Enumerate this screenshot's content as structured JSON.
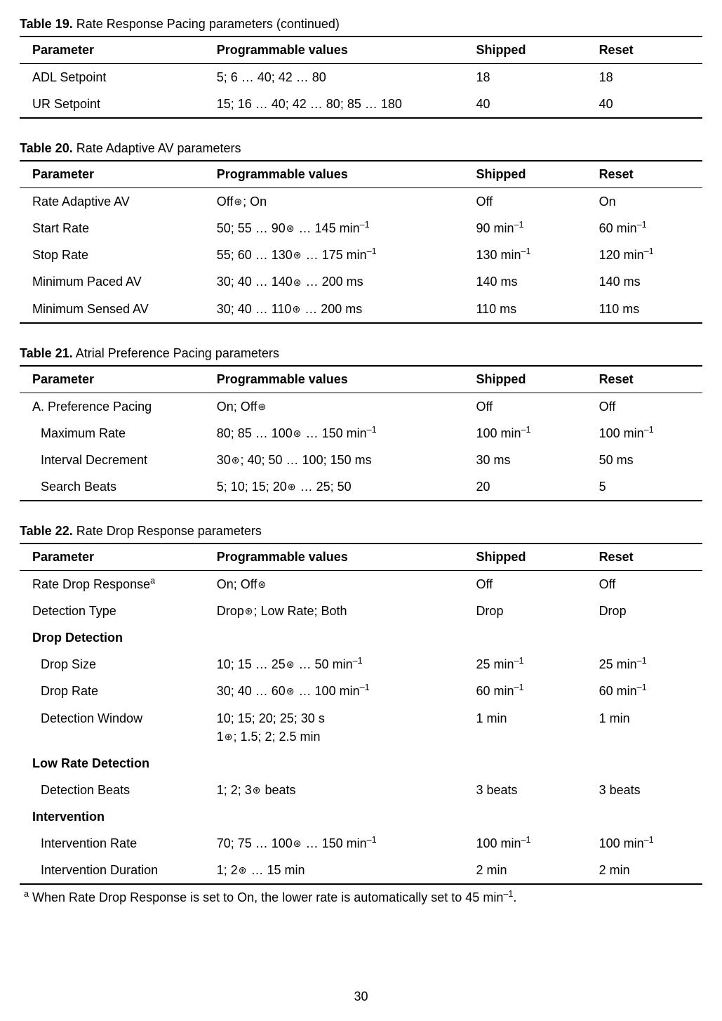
{
  "pageNumber": "30",
  "nominalGlyph": "⊛",
  "tables": [
    {
      "titleBold": "Table 19.",
      "titleRest": " Rate Response Pacing parameters (continued)",
      "headers": [
        "Parameter",
        "Programmable values",
        "Shipped",
        "Reset"
      ],
      "rows": [
        {
          "cells": [
            "ADL Setpoint",
            "5; 6 … 40; 42 … 80",
            "18",
            "18"
          ]
        },
        {
          "cells": [
            "UR Setpoint",
            "15; 16 … 40; 42 … 80; 85 … 180",
            "40",
            "40"
          ]
        }
      ]
    },
    {
      "titleBold": "Table 20.",
      "titleRest": " Rate Adaptive AV parameters",
      "headers": [
        "Parameter",
        "Programmable values",
        "Shipped",
        "Reset"
      ],
      "rows": [
        {
          "cells": [
            "Rate Adaptive AV",
            "Off⊛; On",
            "Off",
            "On"
          ]
        },
        {
          "cells": [
            "Start Rate",
            "50; 55 … 90⊛ … 145 min⁻¹",
            "90 min⁻¹",
            "60 min⁻¹"
          ]
        },
        {
          "cells": [
            "Stop Rate",
            "55; 60 … 130⊛ … 175 min⁻¹",
            "130 min⁻¹",
            "120 min⁻¹"
          ]
        },
        {
          "cells": [
            "Minimum Paced AV",
            "30; 40 … 140⊛ … 200 ms",
            "140 ms",
            "140 ms"
          ]
        },
        {
          "cells": [
            "Minimum Sensed AV",
            "30; 40 … 110⊛ … 200 ms",
            "110 ms",
            "110 ms"
          ]
        }
      ]
    },
    {
      "titleBold": "Table 21.",
      "titleRest": " Atrial Preference Pacing parameters",
      "headers": [
        "Parameter",
        "Programmable values",
        "Shipped",
        "Reset"
      ],
      "rows": [
        {
          "cells": [
            "A. Preference Pacing",
            "On; Off⊛",
            "Off",
            "Off"
          ]
        },
        {
          "indent": true,
          "cells": [
            "Maximum Rate",
            "80; 85 … 100⊛ … 150 min⁻¹",
            "100 min⁻¹",
            "100 min⁻¹"
          ]
        },
        {
          "indent": true,
          "cells": [
            "Interval Decrement",
            "30⊛; 40; 50 … 100; 150 ms",
            "30 ms",
            "50 ms"
          ]
        },
        {
          "indent": true,
          "cells": [
            "Search Beats",
            "5; 10; 15; 20⊛ … 25; 50",
            "20",
            "5"
          ]
        }
      ]
    },
    {
      "titleBold": "Table 22.",
      "titleRest": " Rate Drop Response parameters",
      "headers": [
        "Parameter",
        "Programmable values",
        "Shipped",
        "Reset"
      ],
      "rows": [
        {
          "cells": [
            "Rate Drop Responseᵃ",
            "On; Off⊛",
            "Off",
            "Off"
          ]
        },
        {
          "cells": [
            "Detection Type",
            "Drop⊛; Low Rate; Both",
            "Drop",
            "Drop"
          ]
        },
        {
          "section": true,
          "cells": [
            "Drop Detection",
            "",
            "",
            ""
          ]
        },
        {
          "indent": true,
          "cells": [
            "Drop Size",
            "10; 15 … 25⊛ … 50 min⁻¹",
            "25 min⁻¹",
            "25 min⁻¹"
          ]
        },
        {
          "indent": true,
          "cells": [
            "Drop Rate",
            "30; 40 … 60⊛ … 100 min⁻¹",
            "60 min⁻¹",
            "60 min⁻¹"
          ]
        },
        {
          "indent": true,
          "cells": [
            "Detection Window",
            "10; 15; 20; 25; 30 s\n1⊛; 1.5; 2; 2.5 min",
            "1 min",
            "1 min"
          ]
        },
        {
          "section": true,
          "cells": [
            "Low Rate Detection",
            "",
            "",
            ""
          ]
        },
        {
          "indent": true,
          "cells": [
            "Detection Beats",
            "1; 2; 3⊛ beats",
            "3 beats",
            "3 beats"
          ]
        },
        {
          "section": true,
          "cells": [
            "Intervention",
            "",
            "",
            ""
          ]
        },
        {
          "indent": true,
          "cells": [
            "Intervention Rate",
            "70; 75 … 100⊛ … 150 min⁻¹",
            "100 min⁻¹",
            "100 min⁻¹"
          ]
        },
        {
          "indent": true,
          "cells": [
            "Intervention Duration",
            "1; 2⊛ … 15 min",
            "2 min",
            "2 min"
          ]
        }
      ],
      "footnote": "ᵃ When Rate Drop Response is set to On, the lower rate is automatically set to 45 min⁻¹."
    }
  ]
}
